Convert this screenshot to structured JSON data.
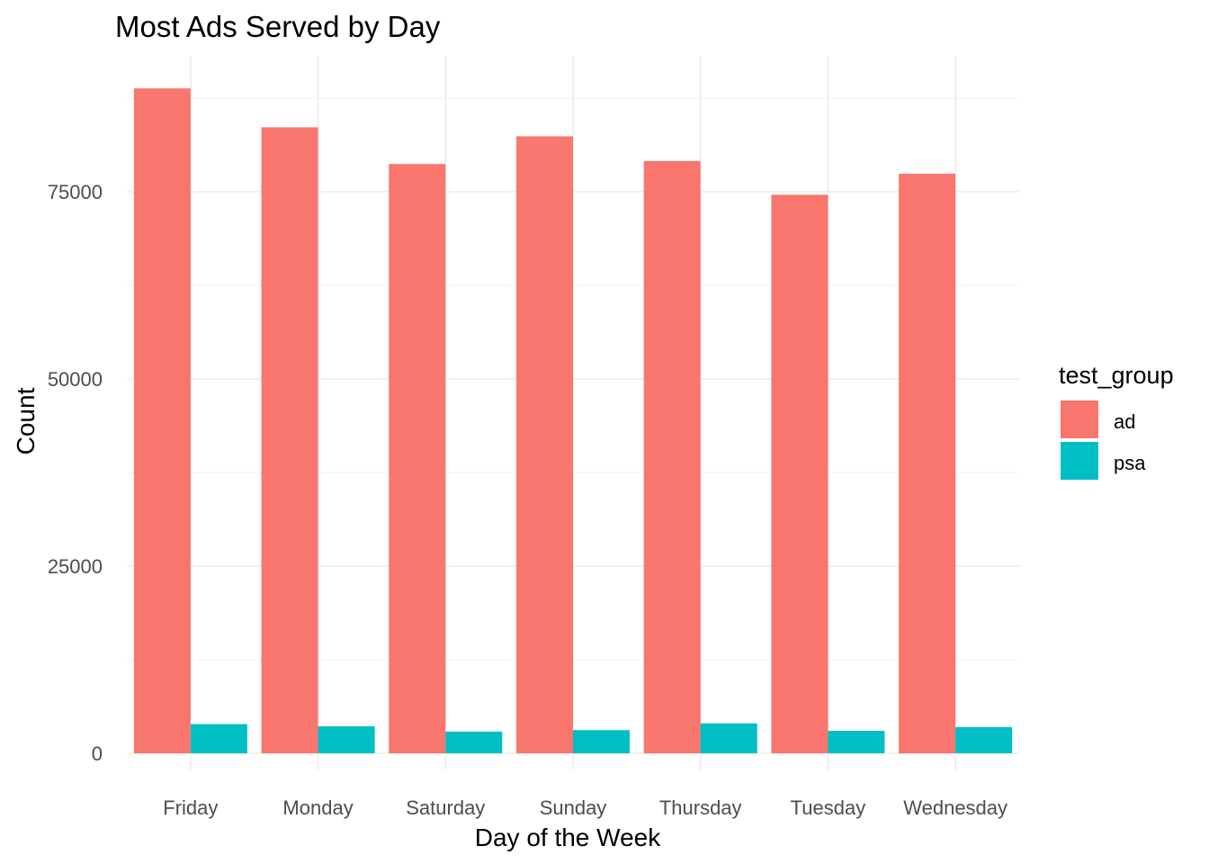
{
  "chart_data": {
    "type": "bar",
    "title": "Most Ads Served by Day",
    "xlabel": "Day of the Week",
    "ylabel": "Count",
    "categories": [
      "Friday",
      "Monday",
      "Saturday",
      "Sunday",
      "Thursday",
      "Tuesday",
      "Wednesday"
    ],
    "series": [
      {
        "name": "ad",
        "color": "#F8766D",
        "values": [
          88800,
          83600,
          78700,
          82400,
          79100,
          74600,
          77400
        ]
      },
      {
        "name": "psa",
        "color": "#00BFC4",
        "values": [
          3900,
          3600,
          2900,
          3100,
          4000,
          3000,
          3500
        ]
      }
    ],
    "ylim": [
      0,
      92000
    ],
    "yticks": [
      0,
      25000,
      50000,
      75000
    ],
    "yticklabels": [
      "0",
      "25000",
      "50000",
      "75000"
    ],
    "grid": true,
    "legend": {
      "title": "test_group",
      "position": "right"
    }
  }
}
